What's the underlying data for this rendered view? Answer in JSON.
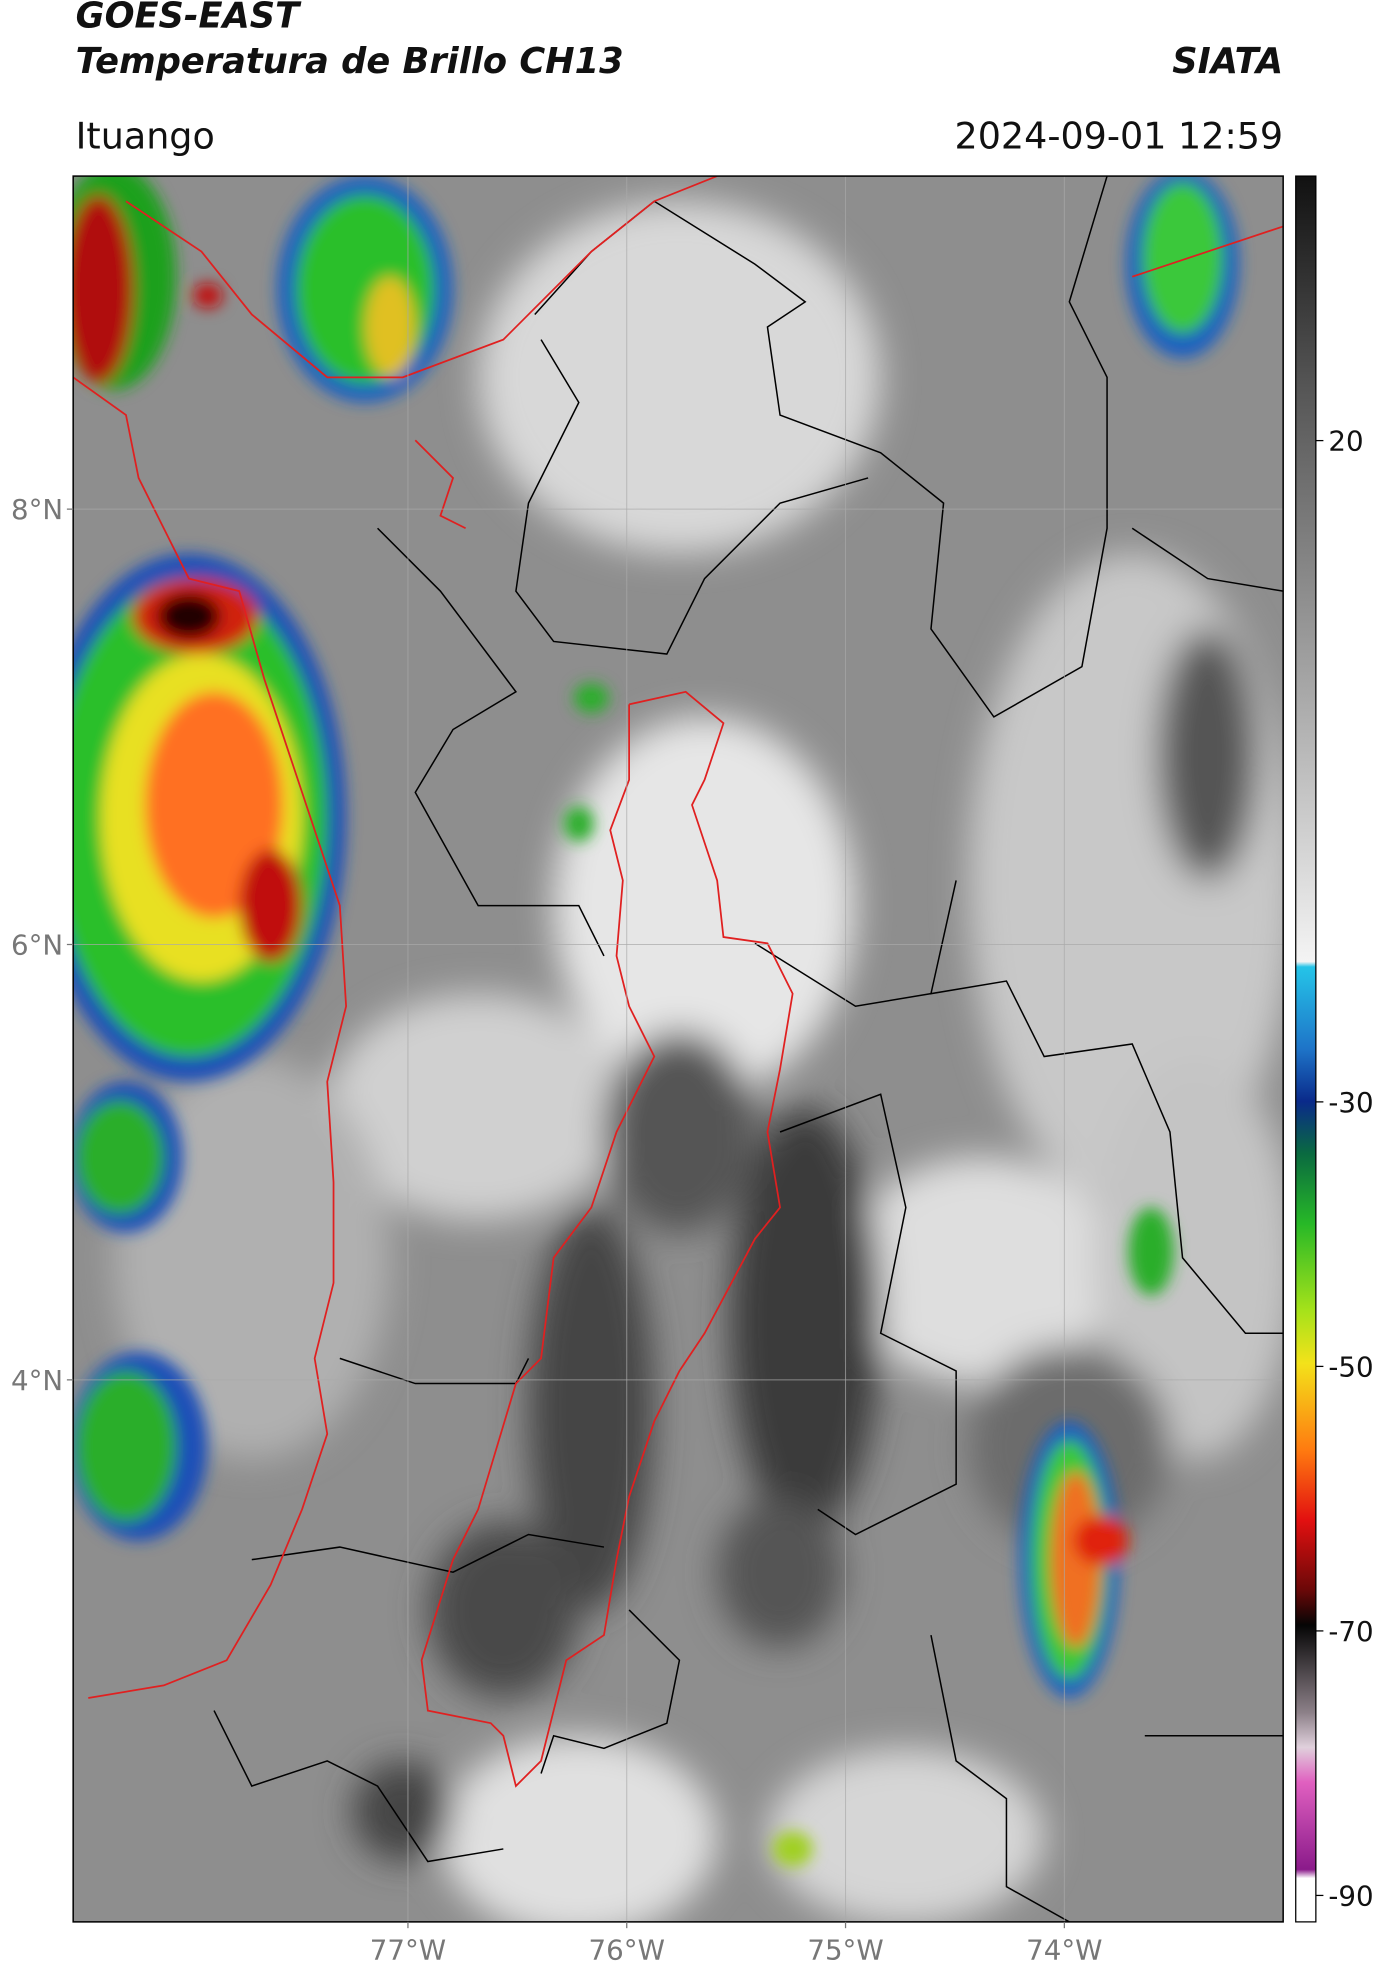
{
  "header": {
    "title": "GOES-EAST",
    "subtitle": "Temperatura de Brillo CH13",
    "brand": "SIATA",
    "location": "Ituango",
    "timestamp": "2024-09-01 12:59"
  },
  "chart_data": {
    "type": "map",
    "xlim": [
      -78.53,
      -73
    ],
    "ylim": [
      1.51,
      9.53
    ],
    "xticks": [
      {
        "value": -77,
        "label": "77°W"
      },
      {
        "value": -76,
        "label": "76°W"
      },
      {
        "value": -75,
        "label": "75°W"
      },
      {
        "value": -74,
        "label": "74°W"
      }
    ],
    "yticks": [
      {
        "value": 8,
        "label": "8°N"
      },
      {
        "value": 6,
        "label": "6°N"
      },
      {
        "value": 4,
        "label": "4°N"
      }
    ],
    "grid": true,
    "colorbar": {
      "ylim": [
        -92,
        40
      ],
      "ticks": [
        20,
        -30,
        -50,
        -70,
        -90
      ]
    }
  }
}
